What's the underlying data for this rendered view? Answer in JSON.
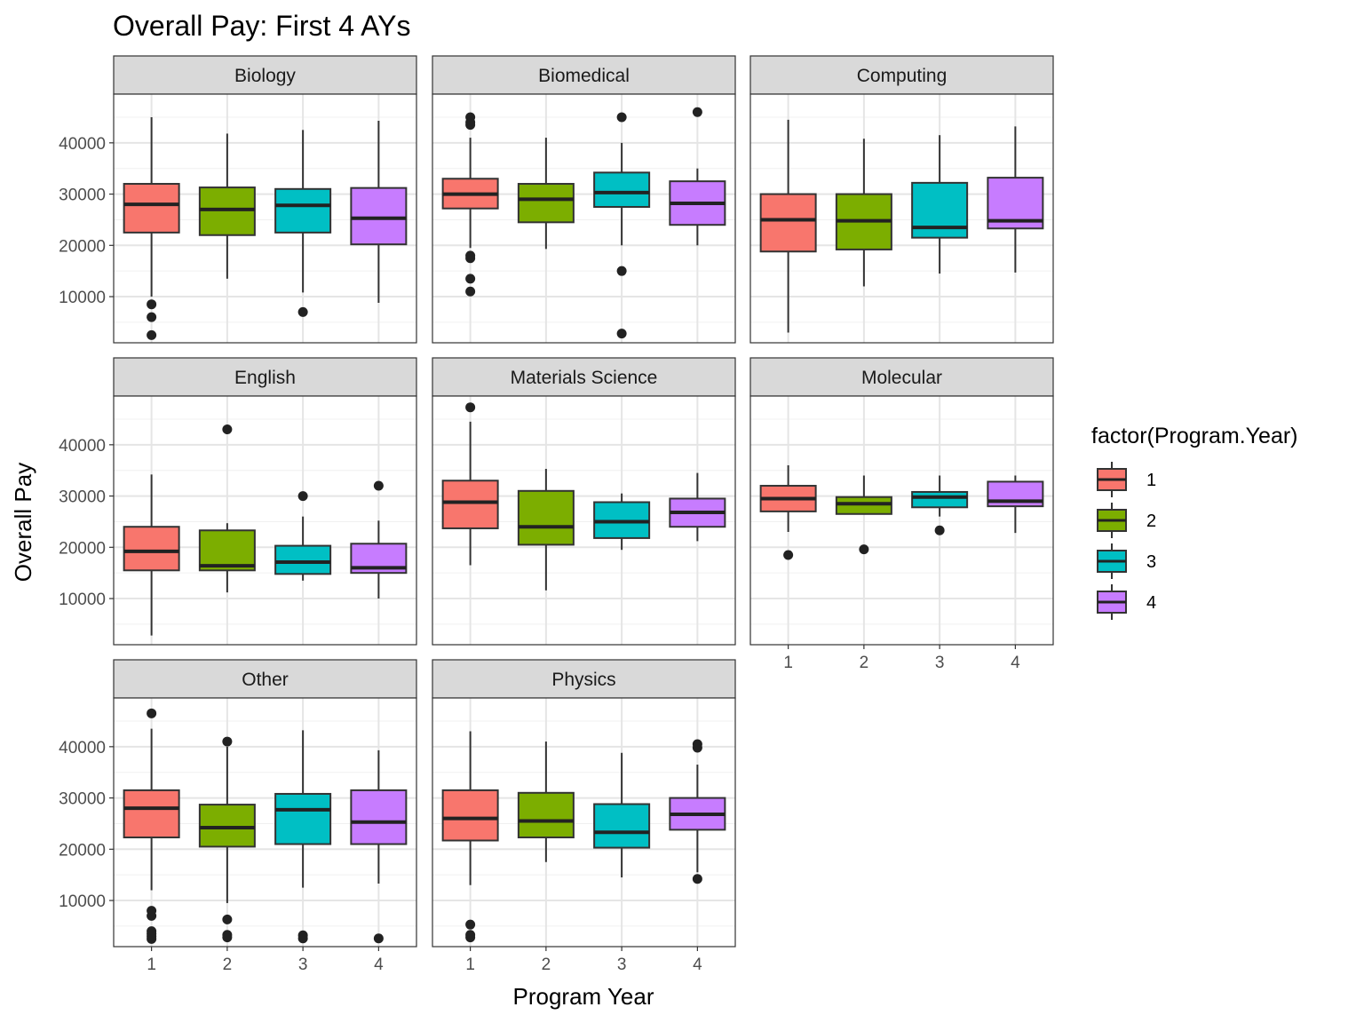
{
  "chart_data": {
    "type": "boxplot",
    "title": "Overall Pay: First 4 AYs",
    "xlabel": "Program Year",
    "ylabel": "Overall Pay",
    "categories": [
      "1",
      "2",
      "3",
      "4"
    ],
    "ylim": [
      1000,
      49500
    ],
    "yticks": [
      10000,
      20000,
      30000,
      40000
    ],
    "ytick_labels": [
      "10000",
      "20000",
      "30000",
      "40000"
    ],
    "grid": true,
    "legend": {
      "title": "factor(Program.Year)",
      "placement": "right",
      "entries": [
        {
          "label": "1",
          "color": "#F8766D"
        },
        {
          "label": "2",
          "color": "#7CAE00"
        },
        {
          "label": "3",
          "color": "#00BFC4"
        },
        {
          "label": "4",
          "color": "#C77CFF"
        }
      ]
    },
    "panels": [
      {
        "name": "Biology",
        "boxes": [
          {
            "q1": 22500,
            "median": 28000,
            "q3": 32000,
            "low": 10000,
            "high": 45000,
            "outliers": [
              8500,
              6000,
              2500
            ]
          },
          {
            "q1": 22000,
            "median": 27000,
            "q3": 31300,
            "low": 13500,
            "high": 41800,
            "outliers": []
          },
          {
            "q1": 22500,
            "median": 27800,
            "q3": 31000,
            "low": 10800,
            "high": 42500,
            "outliers": [
              7000
            ]
          },
          {
            "q1": 20200,
            "median": 25300,
            "q3": 31200,
            "low": 8800,
            "high": 44300,
            "outliers": []
          }
        ]
      },
      {
        "name": "Biomedical",
        "boxes": [
          {
            "q1": 27200,
            "median": 30000,
            "q3": 33000,
            "low": 19500,
            "high": 41000,
            "outliers": [
              45000,
              44000,
              43500,
              18000,
              17500,
              13500,
              11000
            ]
          },
          {
            "q1": 24500,
            "median": 29000,
            "q3": 32000,
            "low": 19300,
            "high": 41000,
            "outliers": []
          },
          {
            "q1": 27500,
            "median": 30300,
            "q3": 34200,
            "low": 20000,
            "high": 40000,
            "outliers": [
              45000,
              15000,
              2800
            ]
          },
          {
            "q1": 24000,
            "median": 28200,
            "q3": 32500,
            "low": 20000,
            "high": 35000,
            "outliers": [
              46000
            ]
          }
        ]
      },
      {
        "name": "Computing",
        "boxes": [
          {
            "q1": 18800,
            "median": 25000,
            "q3": 30000,
            "low": 3000,
            "high": 44500,
            "outliers": []
          },
          {
            "q1": 19200,
            "median": 24800,
            "q3": 30000,
            "low": 12000,
            "high": 40800,
            "outliers": []
          },
          {
            "q1": 21500,
            "median": 23500,
            "q3": 32200,
            "low": 14500,
            "high": 41500,
            "outliers": []
          },
          {
            "q1": 23300,
            "median": 24800,
            "q3": 33200,
            "low": 14700,
            "high": 43200,
            "outliers": []
          }
        ]
      },
      {
        "name": "English",
        "boxes": [
          {
            "q1": 15500,
            "median": 19200,
            "q3": 24000,
            "low": 2800,
            "high": 34200,
            "outliers": []
          },
          {
            "q1": 15500,
            "median": 16400,
            "q3": 23300,
            "low": 11200,
            "high": 24700,
            "outliers": [
              43000
            ]
          },
          {
            "q1": 14800,
            "median": 17100,
            "q3": 20300,
            "low": 13500,
            "high": 26000,
            "outliers": [
              30000
            ]
          },
          {
            "q1": 15000,
            "median": 16000,
            "q3": 20700,
            "low": 10000,
            "high": 25200,
            "outliers": [
              32000
            ]
          }
        ]
      },
      {
        "name": "Materials Science",
        "boxes": [
          {
            "q1": 23700,
            "median": 28800,
            "q3": 33000,
            "low": 16500,
            "high": 44500,
            "outliers": [
              47300
            ]
          },
          {
            "q1": 20500,
            "median": 24000,
            "q3": 31000,
            "low": 11600,
            "high": 35300,
            "outliers": []
          },
          {
            "q1": 21800,
            "median": 25000,
            "q3": 28800,
            "low": 19500,
            "high": 30500,
            "outliers": []
          },
          {
            "q1": 24000,
            "median": 26800,
            "q3": 29500,
            "low": 21200,
            "high": 34500,
            "outliers": []
          }
        ]
      },
      {
        "name": "Molecular",
        "boxes": [
          {
            "q1": 27000,
            "median": 29500,
            "q3": 32000,
            "low": 23000,
            "high": 36000,
            "outliers": [
              18500
            ]
          },
          {
            "q1": 26500,
            "median": 28500,
            "q3": 29800,
            "low": 26500,
            "high": 34000,
            "outliers": [
              19600
            ]
          },
          {
            "q1": 27800,
            "median": 29800,
            "q3": 30800,
            "low": 26000,
            "high": 34000,
            "outliers": [
              23300
            ]
          },
          {
            "q1": 28000,
            "median": 29000,
            "q3": 32800,
            "low": 22800,
            "high": 34000,
            "outliers": []
          }
        ]
      },
      {
        "name": "Other",
        "boxes": [
          {
            "q1": 22300,
            "median": 28000,
            "q3": 31500,
            "low": 12000,
            "high": 43500,
            "outliers": [
              46500,
              8000,
              7000,
              4000,
              3500,
              3000,
              2500
            ]
          },
          {
            "q1": 20500,
            "median": 24200,
            "q3": 28700,
            "low": 9500,
            "high": 40000,
            "outliers": [
              41000,
              6300,
              3300,
              2800
            ]
          },
          {
            "q1": 21000,
            "median": 27700,
            "q3": 30800,
            "low": 12500,
            "high": 43200,
            "outliers": [
              3200,
              2600
            ]
          },
          {
            "q1": 21000,
            "median": 25300,
            "q3": 31500,
            "low": 13300,
            "high": 39300,
            "outliers": [
              2600
            ]
          }
        ]
      },
      {
        "name": "Physics",
        "boxes": [
          {
            "q1": 21700,
            "median": 26000,
            "q3": 31500,
            "low": 13000,
            "high": 43000,
            "outliers": [
              5300,
              3300,
              2800
            ]
          },
          {
            "q1": 22300,
            "median": 25500,
            "q3": 31000,
            "low": 17500,
            "high": 41000,
            "outliers": []
          },
          {
            "q1": 20300,
            "median": 23300,
            "q3": 28800,
            "low": 14500,
            "high": 38800,
            "outliers": []
          },
          {
            "q1": 23800,
            "median": 26800,
            "q3": 30000,
            "low": 15500,
            "high": 36500,
            "outliers": [
              40500,
              39800,
              14200
            ]
          }
        ]
      }
    ]
  }
}
